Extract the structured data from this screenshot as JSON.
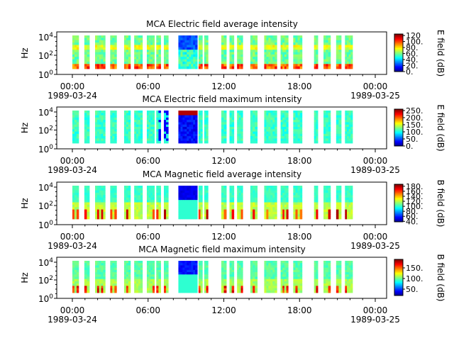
{
  "chart_data": [
    {
      "type": "heatmap",
      "title": "MCA  Electric field average intensity",
      "ylabel": "Hz",
      "ytick_labels": [
        "10^0",
        "10^2",
        "10^4"
      ],
      "ylim": [
        1,
        30000
      ],
      "yscale": "log",
      "x_ticks": [
        {
          "time": "00:00",
          "date": "1989-03-24"
        },
        {
          "time": "06:00",
          "date": ""
        },
        {
          "time": "12:00",
          "date": ""
        },
        {
          "time": "18:00",
          "date": ""
        },
        {
          "time": "00:00",
          "date": "1989-03-25"
        }
      ],
      "colorbar": {
        "label": "E field (dB)",
        "ticks": [
          "0.",
          "20.",
          "40.",
          "60.",
          "80.",
          "100.",
          "120"
        ],
        "range": [
          0,
          125
        ]
      },
      "style": "avg_e"
    },
    {
      "type": "heatmap",
      "title": "MCA  Electric field maximum intensity",
      "ylabel": "Hz",
      "ytick_labels": [
        "10^0",
        "10^2",
        "10^4"
      ],
      "ylim": [
        1,
        30000
      ],
      "yscale": "log",
      "x_ticks": [
        {
          "time": "00:00",
          "date": "1989-03-24"
        },
        {
          "time": "06:00",
          "date": ""
        },
        {
          "time": "12:00",
          "date": ""
        },
        {
          "time": "18:00",
          "date": ""
        },
        {
          "time": "00:00",
          "date": "1989-03-25"
        }
      ],
      "colorbar": {
        "label": "E field (dB)",
        "ticks": [
          "0.",
          "50.",
          "100.",
          "150.",
          "200.",
          "250."
        ],
        "range": [
          0,
          260
        ]
      },
      "style": "max_e"
    },
    {
      "type": "heatmap",
      "title": "MCA  Magnetic field average intensity",
      "ylabel": "Hz",
      "ytick_labels": [
        "10^0",
        "10^2",
        "10^4"
      ],
      "ylim": [
        1,
        30000
      ],
      "yscale": "log",
      "x_ticks": [
        {
          "time": "00:00",
          "date": "1989-03-24"
        },
        {
          "time": "06:00",
          "date": ""
        },
        {
          "time": "12:00",
          "date": ""
        },
        {
          "time": "18:00",
          "date": ""
        },
        {
          "time": "00:00",
          "date": "1989-03-25"
        }
      ],
      "colorbar": {
        "label": "B field (dB)",
        "ticks": [
          "40.",
          "60.",
          "80.",
          "100.",
          "120.",
          "140.",
          "160.",
          "180."
        ],
        "range": [
          38,
          188
        ]
      },
      "style": "avg_b"
    },
    {
      "type": "heatmap",
      "title": "MCA  Magnetic field maximum intensity",
      "ylabel": "Hz",
      "ytick_labels": [
        "10^0",
        "10^2",
        "10^4"
      ],
      "ylim": [
        1,
        30000
      ],
      "yscale": "log",
      "x_ticks": [
        {
          "time": "00:00",
          "date": "1989-03-24"
        },
        {
          "time": "06:00",
          "date": ""
        },
        {
          "time": "12:00",
          "date": ""
        },
        {
          "time": "18:00",
          "date": ""
        },
        {
          "time": "00:00",
          "date": "1989-03-25"
        }
      ],
      "colorbar": {
        "label": "B field (dB)",
        "ticks": [
          "50.",
          "100.",
          "150."
        ],
        "range": [
          20,
          190
        ]
      },
      "style": "max_b"
    }
  ],
  "data_segments_hours": [
    [
      0.0,
      0.5
    ],
    [
      0.95,
      1.35
    ],
    [
      1.8,
      2.6
    ],
    [
      3.0,
      3.5
    ],
    [
      4.1,
      4.6
    ],
    [
      4.9,
      5.55
    ],
    [
      5.9,
      6.5
    ],
    [
      6.65,
      7.0
    ],
    [
      7.25,
      7.6
    ],
    [
      8.4,
      9.9
    ],
    [
      10.0,
      10.3
    ],
    [
      10.45,
      10.75
    ],
    [
      11.8,
      12.2
    ],
    [
      12.45,
      12.8
    ],
    [
      13.05,
      13.5
    ],
    [
      14.1,
      14.65
    ],
    [
      15.2,
      16.2
    ],
    [
      16.5,
      17.1
    ],
    [
      17.5,
      18.2
    ],
    [
      19.15,
      19.45
    ],
    [
      19.9,
      20.45
    ],
    [
      20.9,
      21.3
    ],
    [
      21.6,
      22.2
    ]
  ]
}
